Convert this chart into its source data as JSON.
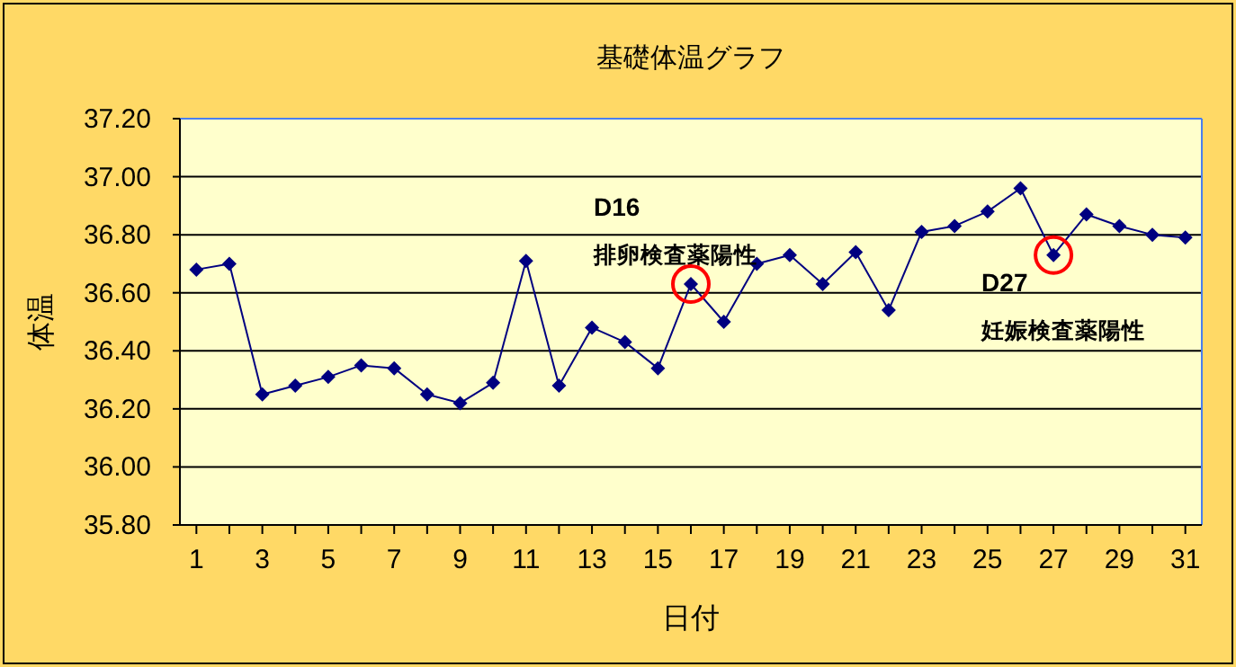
{
  "chart_data": {
    "type": "line",
    "title": "基礎体温グラフ",
    "xlabel": "日付",
    "ylabel": "体温",
    "x": [
      1,
      2,
      3,
      4,
      5,
      6,
      7,
      8,
      9,
      10,
      11,
      12,
      13,
      14,
      15,
      16,
      17,
      18,
      19,
      20,
      21,
      22,
      23,
      24,
      25,
      26,
      27,
      28,
      29,
      30,
      31
    ],
    "xlim": [
      0.5,
      31.5
    ],
    "xticks": [
      1,
      {
        "value": 2,
        "label": null
      },
      3,
      {
        "value": 4,
        "label": null
      },
      5,
      {
        "value": 6,
        "label": null
      },
      7,
      {
        "value": 8,
        "label": null
      },
      9,
      {
        "value": 10,
        "label": null
      },
      11,
      {
        "value": 12,
        "label": null
      },
      13,
      {
        "value": 14,
        "label": null
      },
      15,
      {
        "value": 16,
        "label": null
      },
      17,
      {
        "value": 18,
        "label": null
      },
      19,
      {
        "value": 20,
        "label": null
      },
      21,
      {
        "value": 22,
        "label": null
      },
      23,
      {
        "value": 24,
        "label": null
      },
      25,
      {
        "value": 26,
        "label": null
      },
      27,
      {
        "value": 28,
        "label": null
      },
      29,
      {
        "value": 30,
        "label": null
      },
      31
    ],
    "series": [
      {
        "color": "#000080",
        "values": [
          36.68,
          36.7,
          36.25,
          36.28,
          36.31,
          36.35,
          36.34,
          36.25,
          36.22,
          36.29,
          36.71,
          36.28,
          36.48,
          36.43,
          36.34,
          36.63,
          36.5,
          36.7,
          36.73,
          36.63,
          36.74,
          36.54,
          36.81,
          36.83,
          36.88,
          36.96,
          36.73,
          36.87,
          36.83,
          36.8,
          36.79
        ]
      }
    ],
    "ylim": [
      35.8,
      37.2
    ],
    "yticks": [
      {
        "value": 35.8,
        "label": "35.80"
      },
      {
        "value": 36.0,
        "label": "36.00"
      },
      {
        "value": 36.2,
        "label": "36.20"
      },
      {
        "value": 36.4,
        "label": "36.40"
      },
      {
        "value": 36.6,
        "label": "36.60"
      },
      {
        "value": 36.8,
        "label": "36.80"
      },
      {
        "value": 37.0,
        "label": "37.00"
      },
      {
        "value": 37.2,
        "label": "37.20"
      }
    ],
    "grid": "y",
    "marker": "diamond",
    "line_style": "solid",
    "annotations": [
      "D16",
      {
        "text": "排卵検査薬陽性",
        "x": 16,
        "y": 36.63
      },
      "D27",
      {
        "text": "妊娠検査薬陽性",
        "x": 27,
        "y": 36.73
      }
    ]
  }
}
